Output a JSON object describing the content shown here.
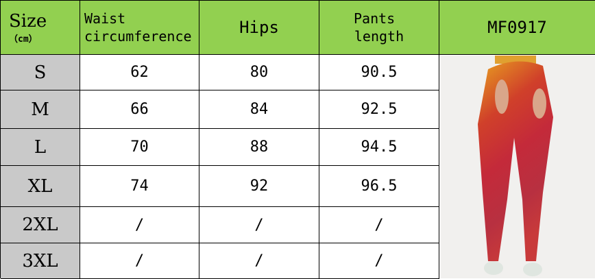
{
  "header": {
    "size": "Size",
    "unit": "（cm）",
    "waist": [
      "Waist",
      "circumference"
    ],
    "hips": "Hips",
    "pants_length": [
      "Pants",
      "length"
    ],
    "model": "MF0917"
  },
  "rows": [
    {
      "size": "S",
      "waist": "62",
      "hips": "80",
      "length": "90.5"
    },
    {
      "size": "M",
      "waist": "66",
      "hips": "84",
      "length": "92.5"
    },
    {
      "size": "L",
      "waist": "70",
      "hips": "88",
      "length": "94.5"
    },
    {
      "size": "XL",
      "waist": "74",
      "hips": "92",
      "length": "96.5"
    },
    {
      "size": "2XL",
      "waist": "/",
      "hips": "/",
      "length": "/"
    },
    {
      "size": "3XL",
      "waist": "/",
      "hips": "/",
      "length": "/"
    }
  ],
  "colors": {
    "header": "#92d050",
    "size_column": "#c9c9c9"
  }
}
